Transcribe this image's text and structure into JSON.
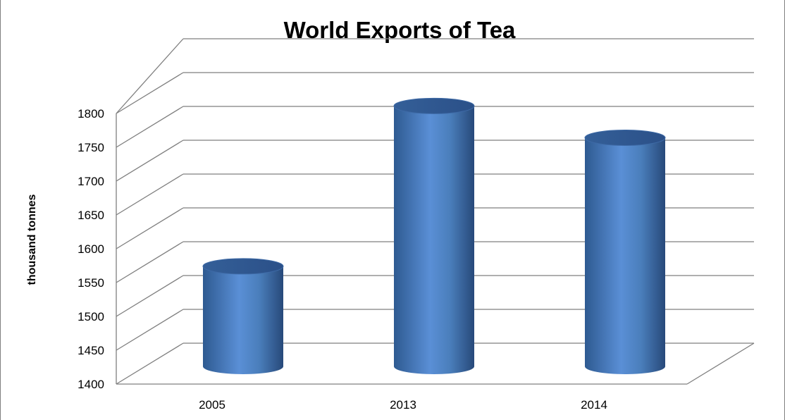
{
  "chart_data": {
    "type": "bar",
    "title": "World Exports of Tea",
    "xlabel": "",
    "ylabel": "thousand tonnes",
    "categories": [
      "2005",
      "2013",
      "2014"
    ],
    "values": [
      1548,
      1785,
      1738
    ],
    "ylim": [
      1400,
      1800
    ],
    "yticks": [
      1400,
      1450,
      1500,
      1550,
      1600,
      1650,
      1700,
      1750,
      1800
    ],
    "style": "3d-cylinder",
    "grid": true,
    "bar_color": "#4a7ebb"
  }
}
